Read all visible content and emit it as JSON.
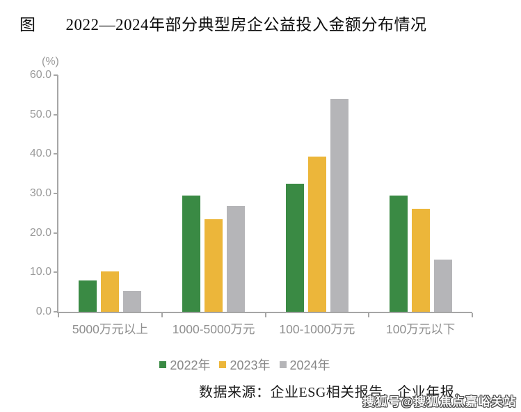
{
  "page": {
    "figure_label": "图",
    "source_note": "数据来源：企业ESG相关报告、企业年报。",
    "watermark": "搜狐号@搜狐焦点嘉峪关站"
  },
  "chart_data": {
    "type": "bar",
    "title": "2022—2024年部分典型房企公益投入金额分布情况",
    "unit_label": "(%)",
    "categories": [
      "5000万元以上",
      "1000-5000万元",
      "100-1000万元",
      "100万元以下"
    ],
    "series": [
      {
        "name": "2022年",
        "color": "#3a8a44",
        "values": [
          7.9,
          29.5,
          32.4,
          29.5
        ]
      },
      {
        "name": "2023年",
        "color": "#ecb63a",
        "values": [
          10.3,
          23.5,
          39.4,
          26.2
        ]
      },
      {
        "name": "2024年",
        "color": "#b5b5b8",
        "values": [
          5.3,
          26.9,
          54.0,
          13.3
        ]
      }
    ],
    "ylim": [
      0,
      60
    ],
    "yticks": [
      0,
      10,
      20,
      30,
      40,
      50,
      60
    ],
    "ytick_decimals": 1,
    "grid": false,
    "legend_position": "bottom",
    "axis_color": "#a6a6a6",
    "tick_label_color": "#9a9a9a",
    "category_label_color": "#8f8f8f",
    "legend_text_color": "#878787"
  }
}
